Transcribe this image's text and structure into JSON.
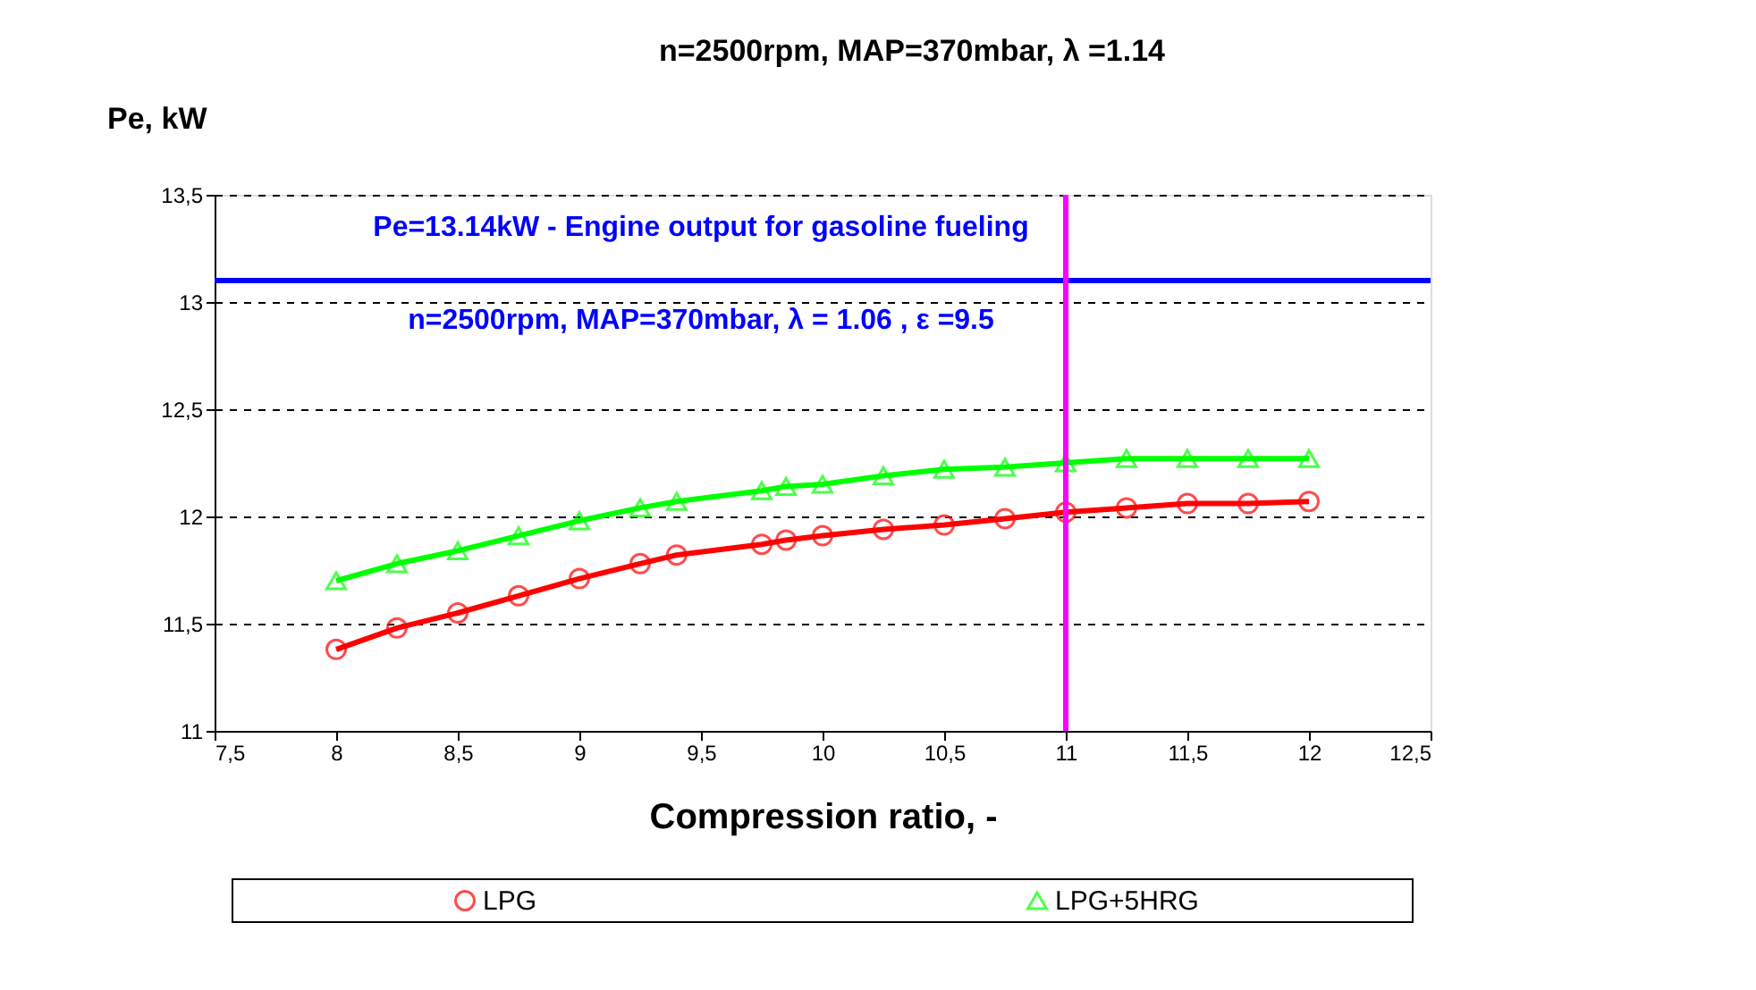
{
  "chart_data": {
    "type": "line",
    "title": "n=2500rpm, MAP=370mbar, λ =1.14",
    "ylabel": "Pe, kW",
    "xlabel": "Compression ratio, -",
    "x": [
      8,
      8.25,
      8.5,
      8.75,
      9,
      9.25,
      9.4,
      9.75,
      9.85,
      10,
      10.25,
      10.5,
      10.75,
      11,
      11.25,
      11.5,
      11.75,
      12
    ],
    "series": [
      {
        "name": "LPG",
        "color": "#ff0000",
        "marker": "circle",
        "values": [
          11.38,
          11.48,
          11.55,
          11.63,
          11.71,
          11.78,
          11.82,
          11.87,
          11.89,
          11.91,
          11.94,
          11.96,
          11.99,
          12.02,
          12.04,
          12.06,
          12.06,
          12.07
        ]
      },
      {
        "name": "LPG+5HRG",
        "color": "#00ff00",
        "marker": "triangle",
        "values": [
          11.7,
          11.78,
          11.84,
          11.91,
          11.98,
          12.04,
          12.07,
          12.12,
          12.14,
          12.15,
          12.19,
          12.22,
          12.23,
          12.25,
          12.27,
          12.27,
          12.27,
          12.27
        ]
      }
    ],
    "xlim": [
      7.5,
      12.5
    ],
    "xticks": [
      {
        "value": 7.5,
        "label": "7,5"
      },
      8,
      {
        "value": 8.5,
        "label": "8,5"
      },
      9,
      {
        "value": 9.5,
        "label": "9,5"
      },
      10,
      {
        "value": 10.5,
        "label": "10,5"
      },
      11,
      {
        "value": 11.5,
        "label": "11,5"
      },
      12,
      {
        "value": 12.5,
        "label": "12,5"
      }
    ],
    "ylim": [
      11,
      13.5
    ],
    "yticks": [
      11,
      {
        "value": 11.5,
        "label": "11,5"
      },
      12,
      {
        "value": 12.5,
        "label": "12,5"
      },
      13,
      {
        "value": 13.5,
        "label": "13,5"
      }
    ],
    "grid": "y",
    "legend": "bottom",
    "line_style": "solid",
    "ref_lines": [
      {
        "axis": "y",
        "value": 13.1,
        "color": "#0000ff",
        "line_style": "solid"
      },
      {
        "axis": "x",
        "value": 11,
        "color": "#ff00ff",
        "line_style": "solid"
      }
    ],
    "annotations": [
      "Pe=13.14kW - Engine output for gasoline fueling",
      "n=2500rpm, MAP=370mbar, λ = 1.06 , ε =9.5"
    ]
  }
}
